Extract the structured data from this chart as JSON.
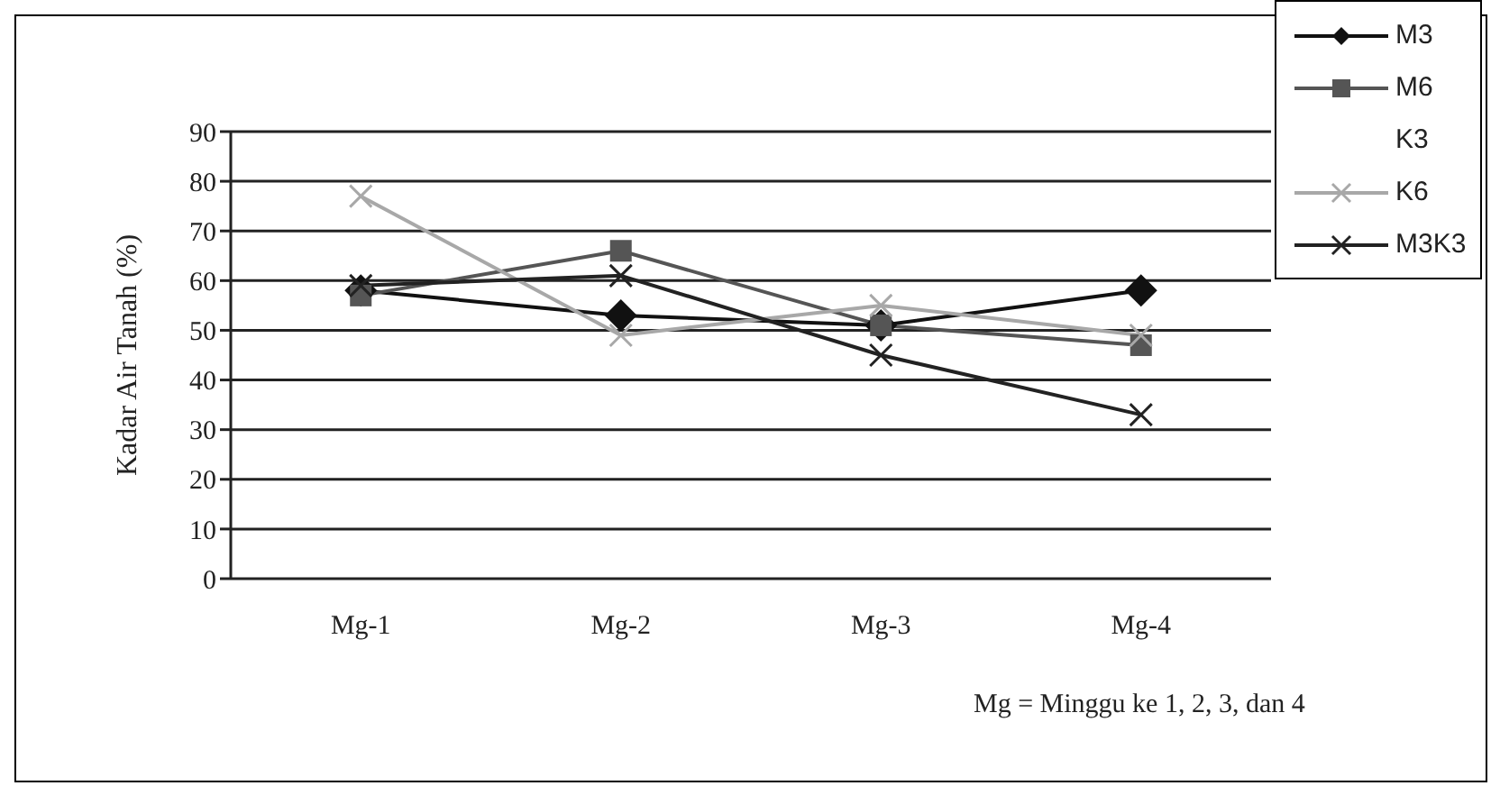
{
  "chart_data": {
    "type": "line",
    "ylabel": "Kadar Air Tanah (%)",
    "categories": [
      "Mg-1",
      "Mg-2",
      "Mg-3",
      "Mg-4"
    ],
    "series": [
      {
        "name": "M3",
        "color": "#111111",
        "marker": "diamond",
        "values": [
          58,
          53,
          51,
          58
        ]
      },
      {
        "name": "M6",
        "color": "#555555",
        "marker": "square",
        "values": [
          57,
          66,
          51,
          47
        ]
      },
      {
        "name": "K3",
        "marker": "none",
        "values": [
          null,
          null,
          null,
          null
        ]
      },
      {
        "name": "K6",
        "color": "#a8a8a8",
        "marker": "cross",
        "values": [
          77,
          49,
          55,
          49
        ]
      },
      {
        "name": "M3K3",
        "color": "#222222",
        "marker": "cross",
        "values": [
          59,
          61,
          45,
          33
        ]
      }
    ],
    "ylim": [
      0,
      90
    ],
    "yticks": [
      0,
      10,
      20,
      30,
      40,
      50,
      60,
      70,
      80,
      90
    ],
    "grid": "y",
    "legend": "top right",
    "annotations": [
      "Mg = Minggu ke 1, 2, 3, dan 4"
    ]
  }
}
